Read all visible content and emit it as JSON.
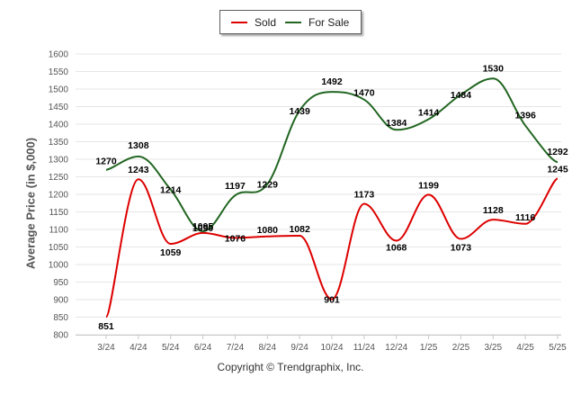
{
  "legend": {
    "sold_label": "Sold",
    "for_sale_label": "For Sale"
  },
  "credit": "Copyright © Trendgraphix, Inc.",
  "colors": {
    "sold": "#dd0000",
    "for_sale": "#226622",
    "grid": "#e6e6e6",
    "axis_text": "#555555",
    "label_text": "#000000"
  },
  "chart_data": {
    "type": "line",
    "title": "",
    "xlabel": "",
    "ylabel": "Average Price (in $,000)",
    "categories": [
      "3/24",
      "4/24",
      "5/24",
      "6/24",
      "7/24",
      "8/24",
      "9/24",
      "10/24",
      "11/24",
      "12/24",
      "1/25",
      "2/25",
      "3/25",
      "4/25",
      "5/25"
    ],
    "ylim": [
      800,
      1600
    ],
    "yticks": [
      800,
      850,
      900,
      950,
      1000,
      1050,
      1100,
      1150,
      1200,
      1250,
      1300,
      1350,
      1400,
      1450,
      1500,
      1550,
      1600
    ],
    "grid": "horizontal",
    "legend_position": "top-center",
    "series": [
      {
        "name": "Sold",
        "color": "#dd0000",
        "values": [
          851,
          1243,
          1059,
          1090,
          1076,
          1080,
          1082,
          901,
          1173,
          1068,
          1199,
          1073,
          1128,
          1116,
          1245
        ]
      },
      {
        "name": "For Sale",
        "color": "#226622",
        "values": [
          1270,
          1308,
          1214,
          1095,
          1197,
          1229,
          1439,
          1492,
          1470,
          1384,
          1414,
          1484,
          1530,
          1396,
          1292
        ]
      }
    ]
  }
}
